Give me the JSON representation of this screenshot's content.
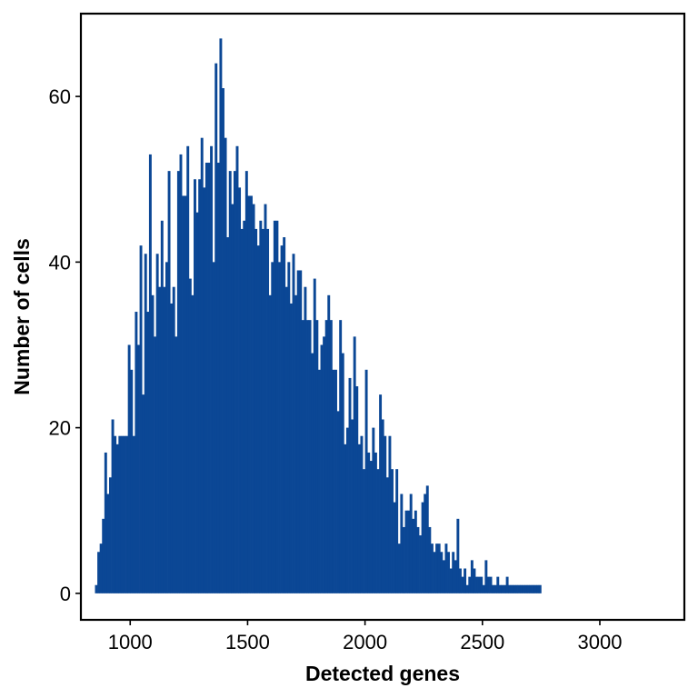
{
  "chart_data": {
    "type": "bar",
    "subtype": "histogram",
    "title": "",
    "xlabel": "Detected genes",
    "ylabel": "Number of cells",
    "xlim": [
      790,
      3360
    ],
    "ylim": [
      -3.2,
      70
    ],
    "x_ticks": [
      1000,
      1500,
      2000,
      2500,
      3000
    ],
    "y_ticks": [
      0,
      20,
      40,
      60
    ],
    "bin_width": 10,
    "bar_color": "#0b4795",
    "grid": false,
    "legend": "none",
    "bins": [
      [
        850,
        1
      ],
      [
        860,
        5
      ],
      [
        870,
        6
      ],
      [
        880,
        9
      ],
      [
        890,
        17
      ],
      [
        900,
        12
      ],
      [
        910,
        14
      ],
      [
        920,
        21
      ],
      [
        930,
        19
      ],
      [
        940,
        18
      ],
      [
        950,
        19
      ],
      [
        960,
        19
      ],
      [
        970,
        19
      ],
      [
        980,
        19
      ],
      [
        990,
        30
      ],
      [
        1000,
        27
      ],
      [
        1010,
        19
      ],
      [
        1020,
        34
      ],
      [
        1030,
        30
      ],
      [
        1040,
        42
      ],
      [
        1050,
        24
      ],
      [
        1060,
        41
      ],
      [
        1070,
        34
      ],
      [
        1080,
        53
      ],
      [
        1090,
        36
      ],
      [
        1100,
        31
      ],
      [
        1110,
        41
      ],
      [
        1120,
        37
      ],
      [
        1130,
        45
      ],
      [
        1140,
        37
      ],
      [
        1150,
        40
      ],
      [
        1160,
        51
      ],
      [
        1170,
        35
      ],
      [
        1180,
        37
      ],
      [
        1190,
        31
      ],
      [
        1200,
        51
      ],
      [
        1210,
        53
      ],
      [
        1220,
        48
      ],
      [
        1230,
        48
      ],
      [
        1240,
        54
      ],
      [
        1250,
        38
      ],
      [
        1260,
        36
      ],
      [
        1270,
        50
      ],
      [
        1280,
        46
      ],
      [
        1290,
        50
      ],
      [
        1300,
        55
      ],
      [
        1310,
        49
      ],
      [
        1320,
        52
      ],
      [
        1330,
        52
      ],
      [
        1340,
        54
      ],
      [
        1350,
        40
      ],
      [
        1360,
        64
      ],
      [
        1370,
        52
      ],
      [
        1380,
        67
      ],
      [
        1390,
        61
      ],
      [
        1400,
        55
      ],
      [
        1410,
        43
      ],
      [
        1420,
        51
      ],
      [
        1430,
        47
      ],
      [
        1440,
        51
      ],
      [
        1450,
        54
      ],
      [
        1460,
        49
      ],
      [
        1470,
        44
      ],
      [
        1480,
        45
      ],
      [
        1490,
        51
      ],
      [
        1500,
        48
      ],
      [
        1510,
        48
      ],
      [
        1520,
        47
      ],
      [
        1530,
        44
      ],
      [
        1540,
        42
      ],
      [
        1550,
        45
      ],
      [
        1560,
        44
      ],
      [
        1570,
        47
      ],
      [
        1580,
        44
      ],
      [
        1590,
        36
      ],
      [
        1600,
        40
      ],
      [
        1610,
        45
      ],
      [
        1620,
        45
      ],
      [
        1630,
        40
      ],
      [
        1640,
        42
      ],
      [
        1650,
        43
      ],
      [
        1660,
        37
      ],
      [
        1670,
        40
      ],
      [
        1680,
        35
      ],
      [
        1690,
        41
      ],
      [
        1700,
        36
      ],
      [
        1710,
        39
      ],
      [
        1720,
        39
      ],
      [
        1730,
        33
      ],
      [
        1740,
        37
      ],
      [
        1750,
        33
      ],
      [
        1760,
        33
      ],
      [
        1770,
        29
      ],
      [
        1780,
        38
      ],
      [
        1790,
        33
      ],
      [
        1800,
        27
      ],
      [
        1810,
        30
      ],
      [
        1820,
        31
      ],
      [
        1830,
        33
      ],
      [
        1840,
        36
      ],
      [
        1850,
        33
      ],
      [
        1860,
        27
      ],
      [
        1870,
        27
      ],
      [
        1880,
        22
      ],
      [
        1890,
        33
      ],
      [
        1900,
        29
      ],
      [
        1910,
        18
      ],
      [
        1920,
        20
      ],
      [
        1930,
        26
      ],
      [
        1940,
        21
      ],
      [
        1950,
        31
      ],
      [
        1960,
        25
      ],
      [
        1970,
        18
      ],
      [
        1980,
        19
      ],
      [
        1990,
        15
      ],
      [
        2000,
        27
      ],
      [
        2010,
        17
      ],
      [
        2020,
        16
      ],
      [
        2030,
        20
      ],
      [
        2040,
        17
      ],
      [
        2050,
        15
      ],
      [
        2060,
        24
      ],
      [
        2070,
        21
      ],
      [
        2080,
        19
      ],
      [
        2090,
        14
      ],
      [
        2100,
        19
      ],
      [
        2110,
        15
      ],
      [
        2120,
        11
      ],
      [
        2130,
        15
      ],
      [
        2140,
        6
      ],
      [
        2150,
        12
      ],
      [
        2160,
        8
      ],
      [
        2170,
        10
      ],
      [
        2180,
        10
      ],
      [
        2190,
        12
      ],
      [
        2200,
        9
      ],
      [
        2210,
        10
      ],
      [
        2220,
        8
      ],
      [
        2230,
        7
      ],
      [
        2240,
        11
      ],
      [
        2250,
        12
      ],
      [
        2260,
        13
      ],
      [
        2270,
        8
      ],
      [
        2280,
        6
      ],
      [
        2290,
        5
      ],
      [
        2300,
        6
      ],
      [
        2310,
        6
      ],
      [
        2320,
        5
      ],
      [
        2330,
        4
      ],
      [
        2340,
        6
      ],
      [
        2350,
        5
      ],
      [
        2360,
        3
      ],
      [
        2370,
        5
      ],
      [
        2380,
        4
      ],
      [
        2390,
        9
      ],
      [
        2400,
        3
      ],
      [
        2410,
        2
      ],
      [
        2420,
        3
      ],
      [
        2430,
        1
      ],
      [
        2440,
        2
      ],
      [
        2450,
        4
      ],
      [
        2460,
        3
      ],
      [
        2470,
        2
      ],
      [
        2480,
        2
      ],
      [
        2490,
        2
      ],
      [
        2500,
        1
      ],
      [
        2510,
        4
      ],
      [
        2520,
        2
      ],
      [
        2530,
        2
      ],
      [
        2540,
        1
      ],
      [
        2550,
        1
      ],
      [
        2560,
        2
      ],
      [
        2570,
        1
      ],
      [
        2580,
        1
      ],
      [
        2590,
        1
      ],
      [
        2600,
        2
      ],
      [
        2610,
        1
      ],
      [
        2620,
        1
      ],
      [
        2630,
        1
      ],
      [
        2640,
        1
      ],
      [
        2650,
        1
      ],
      [
        2660,
        1
      ],
      [
        2670,
        1
      ],
      [
        2680,
        1
      ],
      [
        2690,
        1
      ],
      [
        2700,
        1
      ],
      [
        2710,
        1
      ],
      [
        2720,
        1
      ],
      [
        2730,
        1
      ],
      [
        2740,
        1
      ]
    ]
  }
}
